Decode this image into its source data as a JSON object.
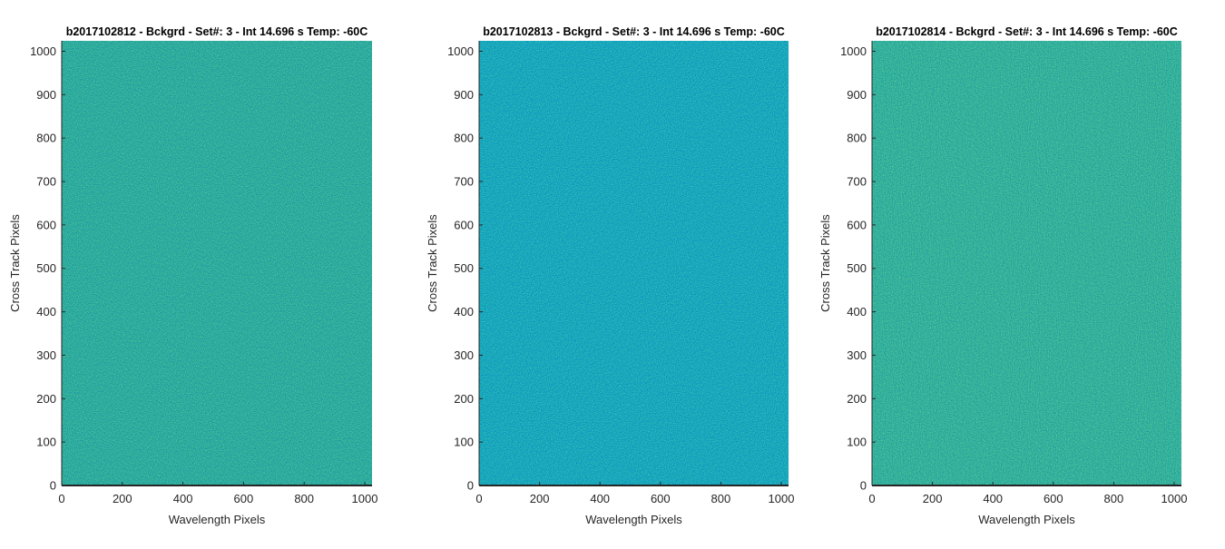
{
  "chart_data": [
    {
      "type": "heatmap",
      "title": "b2017102812 - Bckgrd - Set#: 3 - Int 14.696 s Temp: -60C",
      "xlabel": "Wavelength Pixels",
      "ylabel": "Cross Track Pixels",
      "xlim": [
        0,
        1024
      ],
      "ylim": [
        0,
        1024
      ],
      "xticks": [
        "0",
        "200",
        "400",
        "600",
        "800",
        "1000"
      ],
      "yticks": [
        "0",
        "100",
        "200",
        "300",
        "400",
        "500",
        "600",
        "700",
        "800",
        "900",
        "1000"
      ],
      "colormap": "parula",
      "base_color": "#2aab9f",
      "grid": false
    },
    {
      "type": "heatmap",
      "title": "b2017102813 - Bckgrd - Set#: 3 - Int 14.696 s Temp: -60C",
      "xlabel": "Wavelength Pixels",
      "ylabel": "Cross Track Pixels",
      "xlim": [
        0,
        1024
      ],
      "ylim": [
        0,
        1024
      ],
      "xticks": [
        "0",
        "200",
        "400",
        "600",
        "800",
        "1000"
      ],
      "yticks": [
        "0",
        "100",
        "200",
        "300",
        "400",
        "500",
        "600",
        "700",
        "800",
        "900",
        "1000"
      ],
      "colormap": "parula",
      "base_color": "#15a7bd",
      "grid": false
    },
    {
      "type": "heatmap",
      "title": "b2017102814 - Bckgrd - Set#: 3 - Int 14.696 s Temp: -60C",
      "xlabel": "Wavelength Pixels",
      "ylabel": "Cross Track Pixels",
      "xlim": [
        0,
        1024
      ],
      "ylim": [
        0,
        1024
      ],
      "xticks": [
        "0",
        "200",
        "400",
        "600",
        "800",
        "1000"
      ],
      "yticks": [
        "0",
        "100",
        "200",
        "300",
        "400",
        "500",
        "600",
        "700",
        "800",
        "900",
        "1000"
      ],
      "colormap": "parula",
      "base_color": "#30b09d",
      "grid": false
    }
  ]
}
